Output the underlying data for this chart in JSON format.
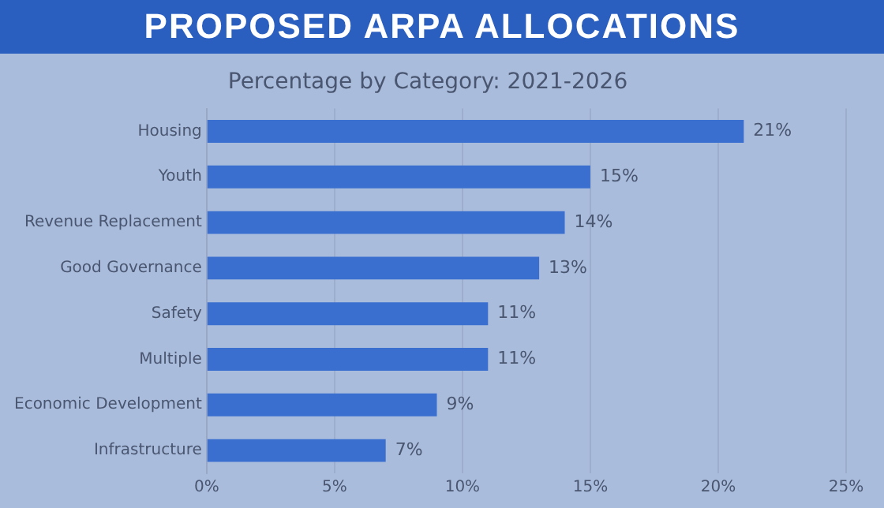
{
  "chart_data": {
    "type": "bar",
    "orientation": "horizontal",
    "title": "PROPOSED ARPA ALLOCATIONS",
    "subtitle": "Percentage by Category: 2021-2026",
    "categories": [
      "Housing",
      "Youth",
      "Revenue Replacement",
      "Good Governance",
      "Safety",
      "Multiple",
      "Economic Development",
      "Infrastructure"
    ],
    "values": [
      21,
      15,
      14,
      13,
      11,
      11,
      9,
      7
    ],
    "value_labels": [
      "21%",
      "15%",
      "14%",
      "13%",
      "11%",
      "11%",
      "9%",
      "7%"
    ],
    "color": "#3a6fd0",
    "xlim": [
      0,
      25
    ],
    "xticks": [
      {
        "value": 0,
        "label": "0%"
      },
      {
        "value": 5,
        "label": "5%"
      },
      {
        "value": 10,
        "label": "10%"
      },
      {
        "value": 15,
        "label": "15%"
      },
      {
        "value": 20,
        "label": "20%"
      },
      {
        "value": 25,
        "label": "25%"
      }
    ],
    "grid": "x",
    "legend": false
  }
}
